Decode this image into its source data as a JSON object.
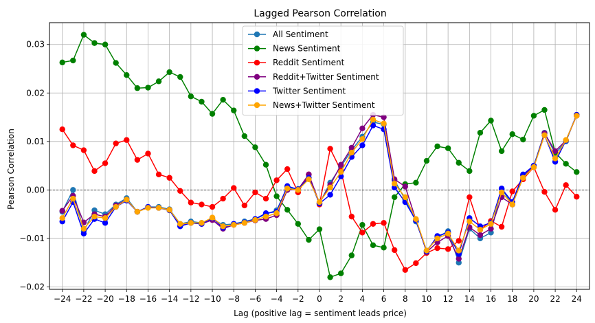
{
  "chart_data": {
    "type": "line",
    "title": "Lagged Pearson Correlation",
    "xlabel": "Lag (positive lag = sentiment leads price)",
    "ylabel": "Pearson Correlation",
    "xlim": [
      -25.2,
      25.2
    ],
    "ylim": [
      -0.0205,
      0.0345
    ],
    "xticks": [
      -24,
      -22,
      -20,
      -18,
      -16,
      -14,
      -12,
      -10,
      -8,
      -6,
      -4,
      -2,
      0,
      2,
      4,
      6,
      8,
      10,
      12,
      14,
      16,
      18,
      20,
      22,
      24
    ],
    "xtick_labels": [
      "−24",
      "−22",
      "−20",
      "−18",
      "−16",
      "−14",
      "−12",
      "−10",
      "−8",
      "−6",
      "−4",
      "−2",
      "0",
      "2",
      "4",
      "6",
      "8",
      "10",
      "12",
      "14",
      "16",
      "18",
      "20",
      "22",
      "24"
    ],
    "yticks": [
      -0.02,
      -0.01,
      0.0,
      0.01,
      0.02,
      0.03
    ],
    "ytick_labels": [
      "−0.02",
      "−0.01",
      "0.00",
      "0.01",
      "0.02",
      "0.03"
    ],
    "grid": true,
    "zero_line": true,
    "legend_position": "top-center",
    "x": [
      -24,
      -23,
      -22,
      -21,
      -20,
      -19,
      -18,
      -17,
      -16,
      -15,
      -14,
      -13,
      -12,
      -11,
      -10,
      -9,
      -8,
      -7,
      -6,
      -5,
      -4,
      -3,
      -2,
      -1,
      0,
      1,
      2,
      3,
      4,
      5,
      6,
      7,
      8,
      9,
      10,
      11,
      12,
      13,
      14,
      15,
      16,
      17,
      18,
      19,
      20,
      21,
      22,
      23,
      24
    ],
    "series": [
      {
        "name": "All Sentiment",
        "color": "#1f77b4",
        "values": [
          -0.0045,
          0.0,
          -0.0085,
          -0.0042,
          -0.005,
          -0.003,
          -0.0017,
          -0.0045,
          -0.0035,
          -0.0035,
          -0.004,
          -0.007,
          -0.0065,
          -0.0068,
          -0.006,
          -0.0072,
          -0.007,
          -0.0065,
          -0.006,
          -0.005,
          -0.0042,
          0.0005,
          0.0002,
          0.0025,
          -0.0028,
          0.0015,
          0.0048,
          0.0082,
          0.011,
          0.014,
          0.0135,
          0.002,
          -0.002,
          -0.0065,
          -0.0125,
          -0.0098,
          -0.0085,
          -0.015,
          -0.008,
          -0.01,
          -0.0088,
          0.0002,
          -0.003,
          0.0025,
          0.005,
          0.0118,
          0.0075,
          0.01,
          0.0155
        ]
      },
      {
        "name": "News Sentiment",
        "color": "#008000",
        "values": [
          0.0263,
          0.0267,
          0.032,
          0.0303,
          0.03,
          0.0262,
          0.0237,
          0.021,
          0.0211,
          0.0224,
          0.0243,
          0.0233,
          0.0193,
          0.0182,
          0.0157,
          0.0186,
          0.0164,
          0.0111,
          0.0088,
          0.0052,
          -0.0013,
          -0.0041,
          -0.007,
          -0.0103,
          -0.0081,
          -0.018,
          -0.0172,
          -0.0135,
          -0.0072,
          -0.0114,
          -0.0119,
          -0.0015,
          0.0012,
          0.0015,
          0.006,
          0.009,
          0.0086,
          0.0056,
          0.0039,
          0.0118,
          0.0143,
          0.008,
          0.0115,
          0.0104,
          0.0153,
          0.0165,
          0.0077,
          0.0054,
          0.0037
        ]
      },
      {
        "name": "Reddit Sentiment",
        "color": "#ff0000",
        "values": [
          0.0125,
          0.0092,
          0.0082,
          0.0039,
          0.0055,
          0.0096,
          0.0103,
          0.0062,
          0.0075,
          0.0032,
          0.0025,
          -0.0002,
          -0.0026,
          -0.003,
          -0.0035,
          -0.0018,
          0.0004,
          -0.0032,
          -0.0005,
          -0.0018,
          0.002,
          0.0043,
          -0.0005,
          0.0032,
          -0.003,
          0.0085,
          0.004,
          -0.0055,
          -0.0088,
          -0.007,
          -0.0068,
          -0.0124,
          -0.0165,
          -0.0151,
          -0.013,
          -0.012,
          -0.0122,
          -0.0105,
          -0.0015,
          -0.0082,
          -0.0064,
          -0.0076,
          -0.0003,
          0.0022,
          0.0047,
          -0.0004,
          -0.0041,
          0.001,
          -0.0014
        ]
      },
      {
        "name": "Reddit+Twitter Sentiment",
        "color": "#800080",
        "values": [
          -0.0043,
          -0.0012,
          -0.0067,
          -0.005,
          -0.0055,
          -0.0032,
          -0.002,
          -0.0045,
          -0.0036,
          -0.0037,
          -0.0041,
          -0.0074,
          -0.0068,
          -0.007,
          -0.0062,
          -0.008,
          -0.0072,
          -0.0068,
          -0.0063,
          -0.006,
          -0.0052,
          0.0,
          0.0001,
          0.0032,
          -0.0027,
          0.001,
          0.0052,
          0.0087,
          0.0127,
          0.0155,
          0.015,
          0.0022,
          0.0007,
          -0.0062,
          -0.0128,
          -0.0108,
          -0.0095,
          -0.0142,
          -0.0077,
          -0.0093,
          -0.008,
          -0.0015,
          -0.003,
          0.003,
          0.0048,
          0.0117,
          0.008,
          0.0102,
          0.0153
        ]
      },
      {
        "name": "Twitter Sentiment",
        "color": "#0000ff",
        "values": [
          -0.0065,
          -0.0025,
          -0.009,
          -0.006,
          -0.0068,
          -0.0035,
          -0.0022,
          -0.0045,
          -0.0035,
          -0.0037,
          -0.0042,
          -0.0075,
          -0.0068,
          -0.007,
          -0.0058,
          -0.0078,
          -0.007,
          -0.0067,
          -0.006,
          -0.0048,
          -0.0045,
          0.0008,
          0.0001,
          0.0025,
          -0.0028,
          -0.001,
          0.0028,
          0.0068,
          0.0092,
          0.0133,
          0.0125,
          0.0005,
          -0.0025,
          -0.0063,
          -0.0127,
          -0.0095,
          -0.0088,
          -0.0132,
          -0.0058,
          -0.0075,
          -0.0068,
          0.0003,
          -0.0025,
          0.0032,
          0.005,
          0.0113,
          0.0058,
          0.0102,
          0.0155
        ]
      },
      {
        "name": "News+Twitter Sentiment",
        "color": "#ffa500",
        "values": [
          -0.0058,
          -0.0018,
          -0.008,
          -0.0055,
          -0.0058,
          -0.0035,
          -0.002,
          -0.0045,
          -0.0037,
          -0.0037,
          -0.0041,
          -0.007,
          -0.0068,
          -0.0068,
          -0.0057,
          -0.0075,
          -0.0072,
          -0.0068,
          -0.0062,
          -0.0055,
          -0.0048,
          0.0003,
          0.0,
          0.0022,
          -0.0025,
          0.0005,
          0.0037,
          0.0077,
          0.0105,
          0.0145,
          0.0137,
          0.0013,
          -0.0015,
          -0.006,
          -0.0125,
          -0.01,
          -0.009,
          -0.0125,
          -0.0065,
          -0.0082,
          -0.007,
          -0.0005,
          -0.003,
          0.0025,
          0.0047,
          0.0113,
          0.0065,
          0.0103,
          0.0153
        ]
      }
    ]
  }
}
